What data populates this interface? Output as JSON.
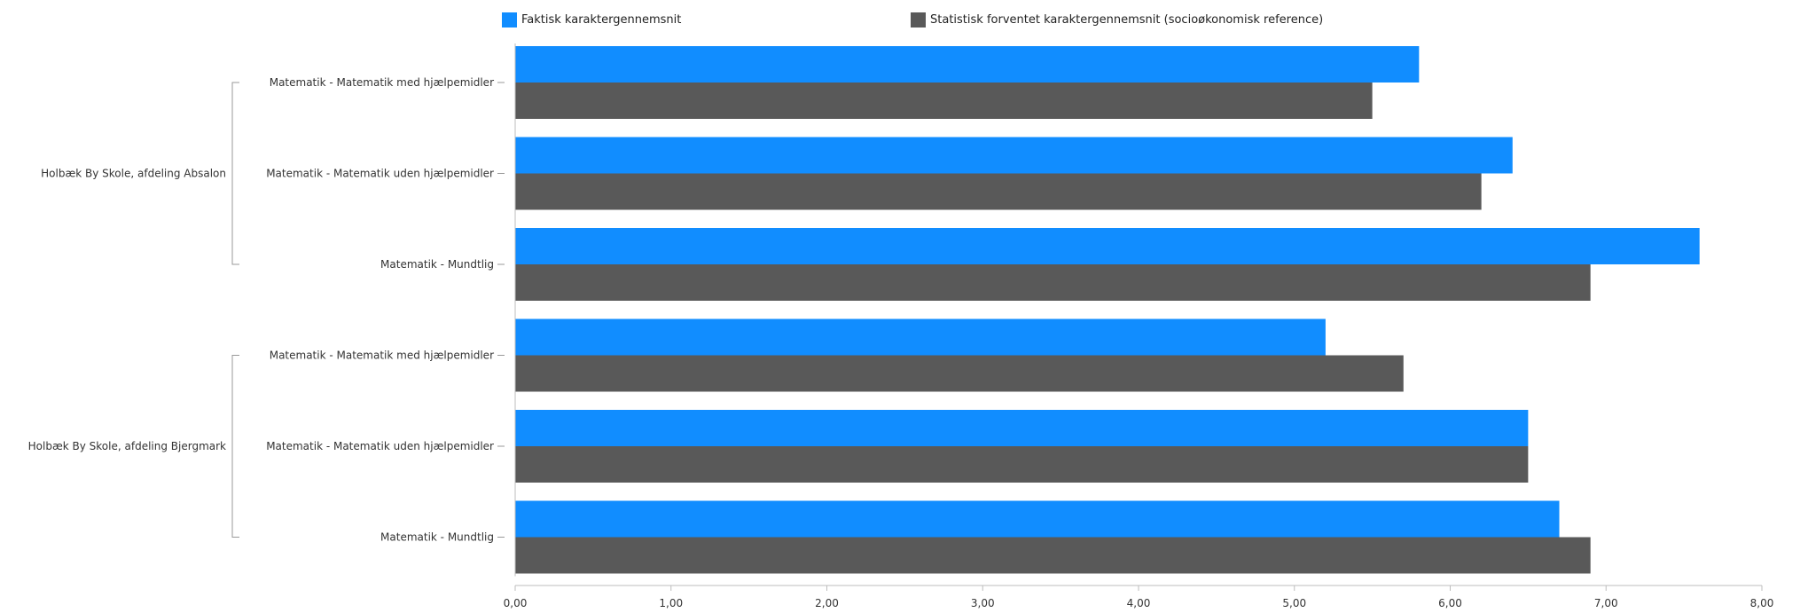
{
  "chart_data": {
    "type": "bar",
    "orientation": "horizontal",
    "groups": [
      {
        "name": "Holbæk By Skole, afdeling Absalon",
        "categories": [
          "Matematik - Matematik med hjælpemidler",
          "Matematik - Matematik uden hjælpemidler",
          "Matematik - Mundtlig"
        ]
      },
      {
        "name": "Holbæk By Skole, afdeling Bjergmark",
        "categories": [
          "Matematik - Matematik med hjælpemidler",
          "Matematik - Matematik uden hjælpemidler",
          "Matematik - Mundtlig"
        ]
      }
    ],
    "series": [
      {
        "name": "Faktisk karaktergennemsnit",
        "color": "#118dff",
        "values": [
          5.8,
          6.4,
          7.6,
          5.2,
          6.5,
          6.7
        ]
      },
      {
        "name": "Statistisk forventet karaktergennemsnit (socioøkonomisk reference)",
        "color": "#595959",
        "values": [
          5.5,
          6.2,
          6.9,
          5.7,
          6.5,
          6.9
        ]
      }
    ],
    "xlim": [
      0,
      8
    ],
    "xticks": [
      "0,00",
      "1,00",
      "2,00",
      "3,00",
      "4,00",
      "5,00",
      "6,00",
      "7,00",
      "8,00"
    ],
    "legend": "top",
    "grid": false
  }
}
